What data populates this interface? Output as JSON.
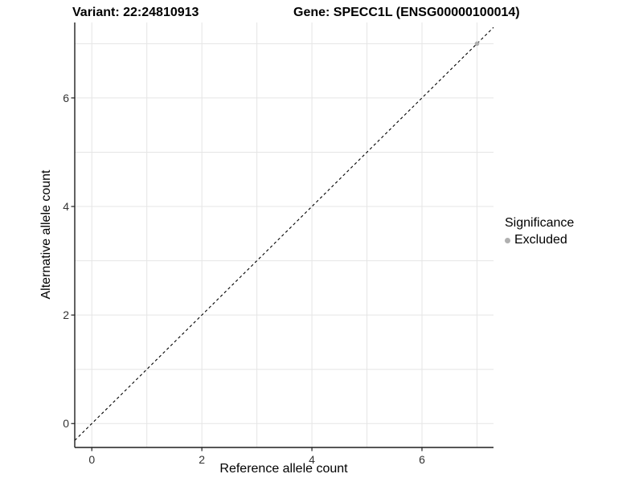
{
  "title": {
    "variant": "Variant: 22:24810913",
    "gene": "Gene: SPECC1L (ENSG00000100014)"
  },
  "axes": {
    "x": {
      "label": "Reference allele count",
      "tick_values": [
        0,
        2,
        4,
        6
      ],
      "tick_labels": [
        "0",
        "2",
        "4",
        "6"
      ],
      "gridlines": [
        0,
        1,
        2,
        3,
        4,
        5,
        6,
        7
      ],
      "lim": [
        -0.31,
        7.3
      ]
    },
    "y": {
      "label": "Alternative allele count",
      "tick_values": [
        0,
        2,
        4,
        6
      ],
      "tick_labels": [
        "0",
        "2",
        "4",
        "6"
      ],
      "gridlines": [
        0,
        1,
        2,
        3,
        4,
        5,
        6,
        7
      ],
      "lim": [
        -0.44,
        7.39
      ]
    }
  },
  "legend": {
    "title": "Significance",
    "items": [
      {
        "label": "Excluded",
        "color": "#b0b0b0"
      }
    ]
  },
  "colors": {
    "grid": "#e5e5e5",
    "axis_line": "#1f1f1f",
    "tick_text": "#333333",
    "reference_line": "#000000",
    "point": "#b0b0b0",
    "background": "#ffffff"
  },
  "chart_data": {
    "type": "scatter",
    "title": "Variant: 22:24810913    Gene: SPECC1L (ENSG00000100014)",
    "xlabel": "Reference allele count",
    "ylabel": "Alternative allele count",
    "xlim": [
      -0.31,
      7.3
    ],
    "ylim": [
      -0.44,
      7.39
    ],
    "x_ticks": [
      0,
      2,
      4,
      6
    ],
    "y_ticks": [
      0,
      2,
      4,
      6
    ],
    "grid": "on",
    "legend_position": "right",
    "legend_title": "Significance",
    "series": [
      {
        "name": "Excluded",
        "color": "#b0b0b0",
        "points": [
          [
            7,
            7
          ]
        ]
      }
    ],
    "reference_line": {
      "kind": "identity",
      "slope": 1,
      "intercept": 0,
      "style": "dashed",
      "color": "#000000"
    }
  }
}
